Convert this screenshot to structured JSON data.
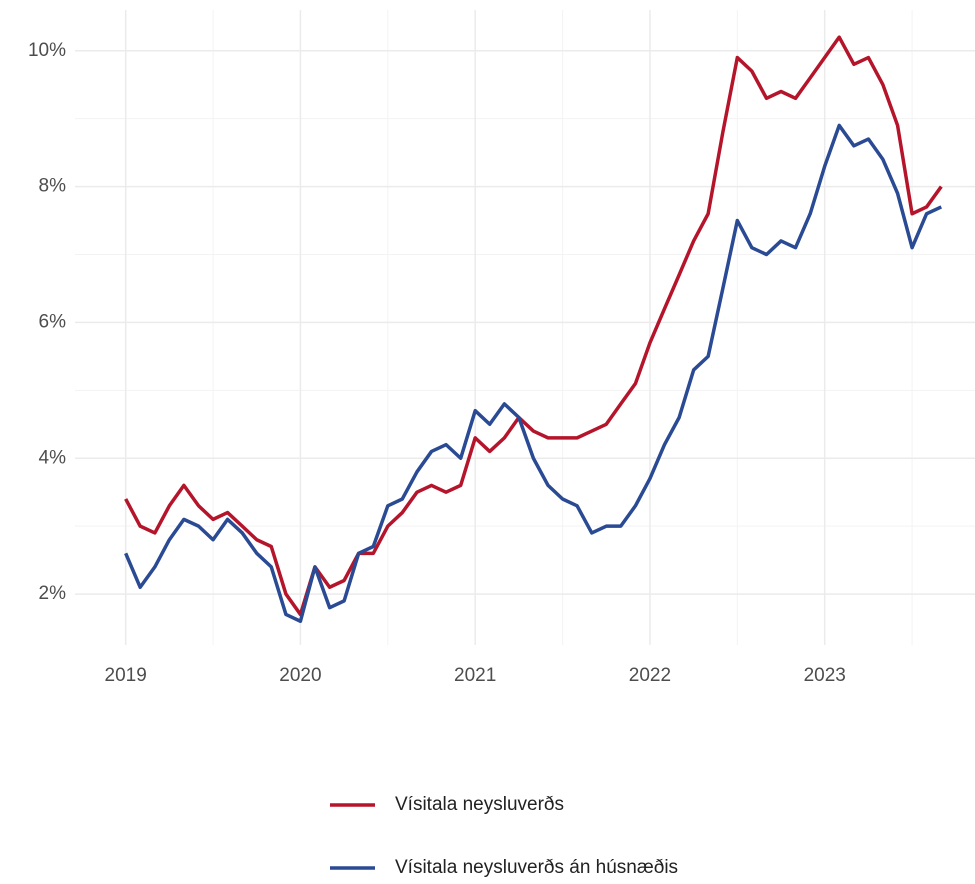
{
  "chart_data": {
    "type": "line",
    "x": [
      2019,
      2019.083,
      2019.167,
      2019.25,
      2019.333,
      2019.417,
      2019.5,
      2019.583,
      2019.667,
      2019.75,
      2019.833,
      2019.917,
      2020,
      2020.083,
      2020.167,
      2020.25,
      2020.333,
      2020.417,
      2020.5,
      2020.583,
      2020.667,
      2020.75,
      2020.833,
      2020.917,
      2021,
      2021.083,
      2021.167,
      2021.25,
      2021.333,
      2021.417,
      2021.5,
      2021.583,
      2021.667,
      2021.75,
      2021.833,
      2021.917,
      2022,
      2022.083,
      2022.167,
      2022.25,
      2022.333,
      2022.417,
      2022.5,
      2022.583,
      2022.667,
      2022.75,
      2022.833,
      2022.917,
      2023,
      2023.083,
      2023.167,
      2023.25,
      2023.333,
      2023.417,
      2023.5,
      2023.583,
      2023.667
    ],
    "series": [
      {
        "name": "Vísitala neysluverðs",
        "color": "#b5152b",
        "values": [
          3.4,
          3.0,
          2.9,
          3.3,
          3.6,
          3.3,
          3.1,
          3.2,
          3.0,
          2.8,
          2.7,
          2.0,
          1.7,
          2.4,
          2.1,
          2.2,
          2.6,
          2.6,
          3.0,
          3.2,
          3.5,
          3.6,
          3.5,
          3.6,
          4.3,
          4.1,
          4.3,
          4.6,
          4.4,
          4.3,
          4.3,
          4.3,
          4.4,
          4.5,
          4.8,
          5.1,
          5.7,
          6.2,
          6.7,
          7.2,
          7.6,
          8.8,
          9.9,
          9.7,
          9.3,
          9.4,
          9.3,
          9.6,
          9.9,
          10.2,
          9.8,
          9.9,
          9.5,
          8.9,
          7.6,
          7.7,
          8.0
        ]
      },
      {
        "name": "Vísitala neysluverðs án húsnæðis",
        "color": "#2a4a94",
        "values": [
          2.6,
          2.1,
          2.4,
          2.8,
          3.1,
          3.0,
          2.8,
          3.1,
          2.9,
          2.6,
          2.4,
          1.7,
          1.6,
          2.4,
          1.8,
          1.9,
          2.6,
          2.7,
          3.3,
          3.4,
          3.8,
          4.1,
          4.2,
          4.0,
          4.7,
          4.5,
          4.8,
          4.6,
          4.0,
          3.6,
          3.4,
          3.3,
          2.9,
          3.0,
          3.0,
          3.3,
          3.7,
          4.2,
          4.6,
          5.3,
          5.5,
          6.5,
          7.5,
          7.1,
          7.0,
          7.2,
          7.1,
          7.6,
          8.3,
          8.9,
          8.6,
          8.7,
          8.4,
          7.9,
          7.1,
          7.6,
          7.7
        ]
      }
    ],
    "xlim": [
      2018.71,
      2023.86
    ],
    "xticks": [
      2019,
      2020,
      2021,
      2022,
      2023
    ],
    "ylim": [
      1.25,
      10.6
    ],
    "yticks": [
      {
        "value": 2,
        "label": "2%"
      },
      {
        "value": 4,
        "label": "4%"
      },
      {
        "value": 6,
        "label": "6%"
      },
      {
        "value": 8,
        "label": "8%"
      },
      {
        "value": 10,
        "label": "10%"
      }
    ],
    "grid": true,
    "legend": "bottom"
  }
}
